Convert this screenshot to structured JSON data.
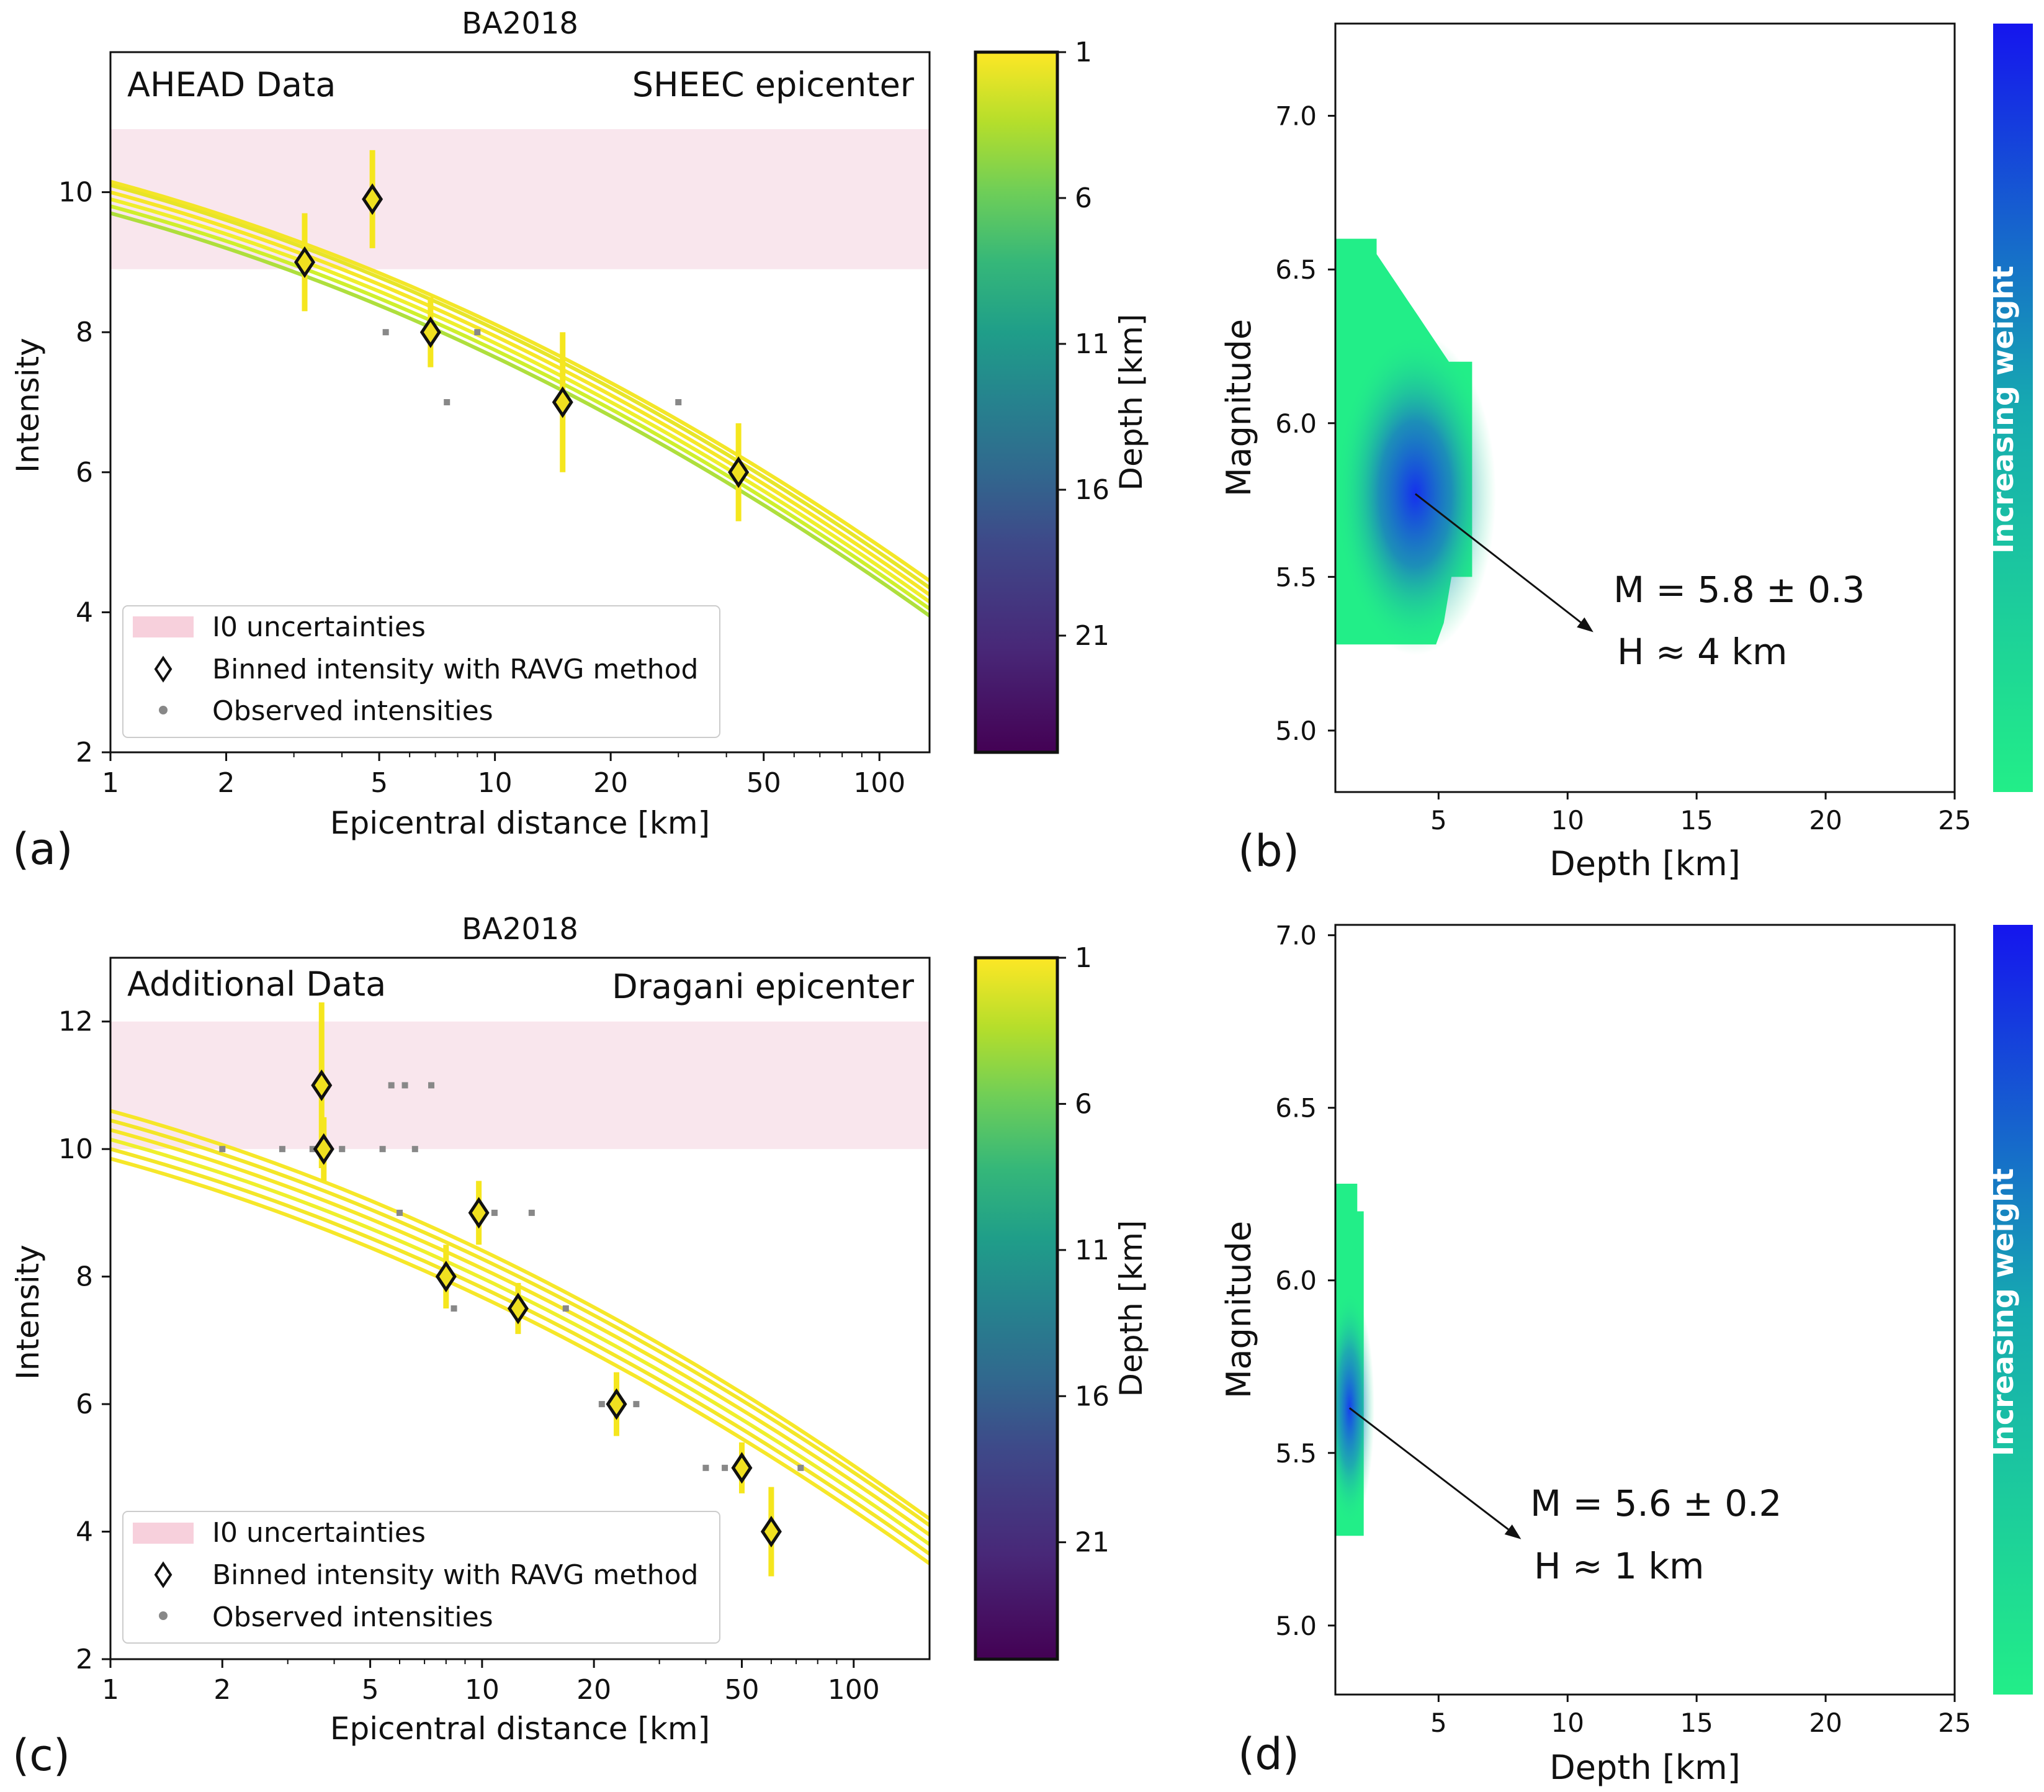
{
  "chart_data": [
    {
      "panel_label": "(a)",
      "type": "scatter",
      "title": "BA2018",
      "corner_left": "AHEAD Data",
      "corner_right": "SHEEC epicenter",
      "xlabel": "Epicentral distance [km]",
      "ylabel": "Intensity",
      "xscale": "log",
      "xlim": [
        1,
        135
      ],
      "ylim": [
        2,
        12
      ],
      "xticks": [
        1,
        2,
        5,
        10,
        20,
        50,
        100
      ],
      "xtick_labels": [
        "1",
        "2",
        "5",
        "10",
        "20",
        "50",
        "100"
      ],
      "yticks": [
        2,
        4,
        6,
        8,
        10
      ],
      "ytick_labels": [
        "2",
        "4",
        "6",
        "8",
        "10"
      ],
      "band": [
        8.9,
        10.9
      ],
      "binned": [
        {
          "x": 3.2,
          "y": 9.0,
          "err": 0.7
        },
        {
          "x": 4.8,
          "y": 9.9,
          "err": 0.7
        },
        {
          "x": 6.8,
          "y": 8.0,
          "err": 0.5
        },
        {
          "x": 15,
          "y": 7.0,
          "err": 1.0
        },
        {
          "x": 43,
          "y": 6.0,
          "err": 0.7
        }
      ],
      "observed": [
        {
          "x": 5.2,
          "y": 8.0
        },
        {
          "x": 7.5,
          "y": 7.0
        },
        {
          "x": 9.0,
          "y": 8.0
        },
        {
          "x": 30,
          "y": 7.0
        }
      ],
      "curve_start": [
        9.7,
        9.8,
        9.9,
        10.0,
        10.1,
        10.15
      ],
      "curve_end": [
        3.95,
        4.05,
        4.15,
        4.25,
        4.35,
        4.45
      ],
      "curve_colors": [
        "#aadd33",
        "#ccee22",
        "#eeee22",
        "#f5e61e",
        "#e6e41e",
        "#f2e51c"
      ],
      "legend": {
        "position": "lower-left",
        "entries": [
          "I0 uncertainties",
          "Binned intensity with RAVG method",
          "Observed intensities"
        ]
      },
      "colorbar": {
        "label": "Depth [km]",
        "ticks": [
          1,
          6,
          11,
          16,
          21
        ],
        "tick_labels": [
          "1",
          "6",
          "11",
          "16",
          "21"
        ],
        "range": [
          1,
          25
        ]
      }
    },
    {
      "panel_label": "(b)",
      "type": "heatmap",
      "xlabel": "Depth [km]",
      "ylabel": "Magnitude",
      "xlim": [
        1,
        25
      ],
      "ylim": [
        4.8,
        7.3
      ],
      "xticks": [
        5,
        10,
        15,
        20,
        25
      ],
      "xtick_labels": [
        "5",
        "10",
        "15",
        "20",
        "25"
      ],
      "yticks": [
        5.0,
        5.5,
        6.0,
        6.5,
        7.0
      ],
      "ytick_labels": [
        "5.0",
        "5.5",
        "6.0",
        "6.5",
        "7.0"
      ],
      "region": [
        [
          1,
          6.6
        ],
        [
          2.6,
          6.6
        ],
        [
          2.6,
          6.55
        ],
        [
          3.0,
          6.5
        ],
        [
          3.4,
          6.45
        ],
        [
          3.8,
          6.4
        ],
        [
          4.2,
          6.35
        ],
        [
          4.6,
          6.3
        ],
        [
          5.0,
          6.25
        ],
        [
          5.4,
          6.2
        ],
        [
          6.3,
          6.2
        ],
        [
          6.3,
          5.5
        ],
        [
          5.5,
          5.5
        ],
        [
          5.2,
          5.35
        ],
        [
          4.9,
          5.28
        ],
        [
          1,
          5.28
        ]
      ],
      "peak": {
        "depth": 4.1,
        "magnitude": 5.77
      },
      "arrow_to": {
        "depth": 11.0,
        "magnitude": 5.32
      },
      "annotation": [
        "M = 5.8 ± 0.3",
        "H ≈ 4 km"
      ],
      "colorbar": {
        "label": "Increasing weight",
        "low_color": "#22ee88",
        "high_color": "#1515ee"
      }
    },
    {
      "panel_label": "(c)",
      "type": "scatter",
      "title": "BA2018",
      "corner_left": "Additional Data",
      "corner_right": "Dragani epicenter",
      "xlabel": "Epicentral distance [km]",
      "ylabel": "Intensity",
      "xscale": "log",
      "xlim": [
        1,
        160
      ],
      "ylim": [
        2,
        13
      ],
      "xticks": [
        1,
        2,
        5,
        10,
        20,
        50,
        100
      ],
      "xtick_labels": [
        "1",
        "2",
        "5",
        "10",
        "20",
        "50",
        "100"
      ],
      "yticks": [
        2,
        4,
        6,
        8,
        10,
        12
      ],
      "ytick_labels": [
        "2",
        "4",
        "6",
        "8",
        "10",
        "12"
      ],
      "band": [
        10,
        12
      ],
      "binned": [
        {
          "x": 3.7,
          "y": 11.0,
          "err": 1.3
        },
        {
          "x": 3.75,
          "y": 10.0,
          "err": 0.5
        },
        {
          "x": 8.0,
          "y": 8.0,
          "err": 0.5
        },
        {
          "x": 9.8,
          "y": 9.0,
          "err": 0.5
        },
        {
          "x": 12.5,
          "y": 7.5,
          "err": 0.4
        },
        {
          "x": 23,
          "y": 6.0,
          "err": 0.5
        },
        {
          "x": 50,
          "y": 5.0,
          "err": 0.4
        },
        {
          "x": 60,
          "y": 4.0,
          "err": 0.7
        }
      ],
      "observed": [
        {
          "x": 2.0,
          "y": 10.0
        },
        {
          "x": 2.9,
          "y": 10.0
        },
        {
          "x": 3.5,
          "y": 10.0
        },
        {
          "x": 4.2,
          "y": 10.0
        },
        {
          "x": 5.4,
          "y": 10.0
        },
        {
          "x": 6.6,
          "y": 10.0
        },
        {
          "x": 5.7,
          "y": 11.0
        },
        {
          "x": 6.2,
          "y": 11.0
        },
        {
          "x": 7.3,
          "y": 11.0
        },
        {
          "x": 6.0,
          "y": 9.0
        },
        {
          "x": 10.8,
          "y": 9.0
        },
        {
          "x": 13.6,
          "y": 9.0
        },
        {
          "x": 8.4,
          "y": 7.5
        },
        {
          "x": 16.8,
          "y": 7.5
        },
        {
          "x": 21,
          "y": 6.0
        },
        {
          "x": 26,
          "y": 6.0
        },
        {
          "x": 40,
          "y": 5.0
        },
        {
          "x": 45,
          "y": 5.0
        },
        {
          "x": 72,
          "y": 5.0
        }
      ],
      "curve_start": [
        9.85,
        10.0,
        10.15,
        10.3,
        10.45,
        10.6
      ],
      "curve_end": [
        3.5,
        3.65,
        3.8,
        3.95,
        4.1,
        4.2
      ],
      "curve_colors": [
        "#f5e61e",
        "#f2e51c",
        "#eeee22",
        "#f5e61e",
        "#f2e51c",
        "#f5e61e"
      ],
      "legend": {
        "position": "lower-left",
        "entries": [
          "I0 uncertainties",
          "Binned intensity with RAVG method",
          "Observed intensities"
        ]
      },
      "colorbar": {
        "label": "Depth [km]",
        "ticks": [
          1,
          6,
          11,
          16,
          21
        ],
        "tick_labels": [
          "1",
          "6",
          "11",
          "16",
          "21"
        ],
        "range": [
          1,
          25
        ]
      }
    },
    {
      "panel_label": "(d)",
      "type": "heatmap",
      "xlabel": "Depth [km]",
      "ylabel": "Magnitude",
      "xlim": [
        1,
        25
      ],
      "ylim": [
        4.8,
        7.03
      ],
      "xticks": [
        5,
        10,
        15,
        20,
        25
      ],
      "xtick_labels": [
        "5",
        "10",
        "15",
        "20",
        "25"
      ],
      "yticks": [
        5.0,
        5.5,
        6.0,
        6.5,
        7.0
      ],
      "ytick_labels": [
        "5.0",
        "5.5",
        "6.0",
        "6.5",
        "7.0"
      ],
      "region": [
        [
          1,
          6.28
        ],
        [
          1.85,
          6.28
        ],
        [
          1.85,
          6.2
        ],
        [
          2.1,
          6.2
        ],
        [
          2.1,
          5.26
        ],
        [
          1,
          5.26
        ]
      ],
      "peak": {
        "depth": 1.55,
        "magnitude": 5.63
      },
      "arrow_to": {
        "depth": 8.2,
        "magnitude": 5.25
      },
      "annotation": [
        "M = 5.6 ± 0.2",
        "H ≈ 1 km"
      ],
      "colorbar": {
        "label": "Increasing weight",
        "low_color": "#22ee88",
        "high_color": "#1515ee"
      }
    }
  ]
}
